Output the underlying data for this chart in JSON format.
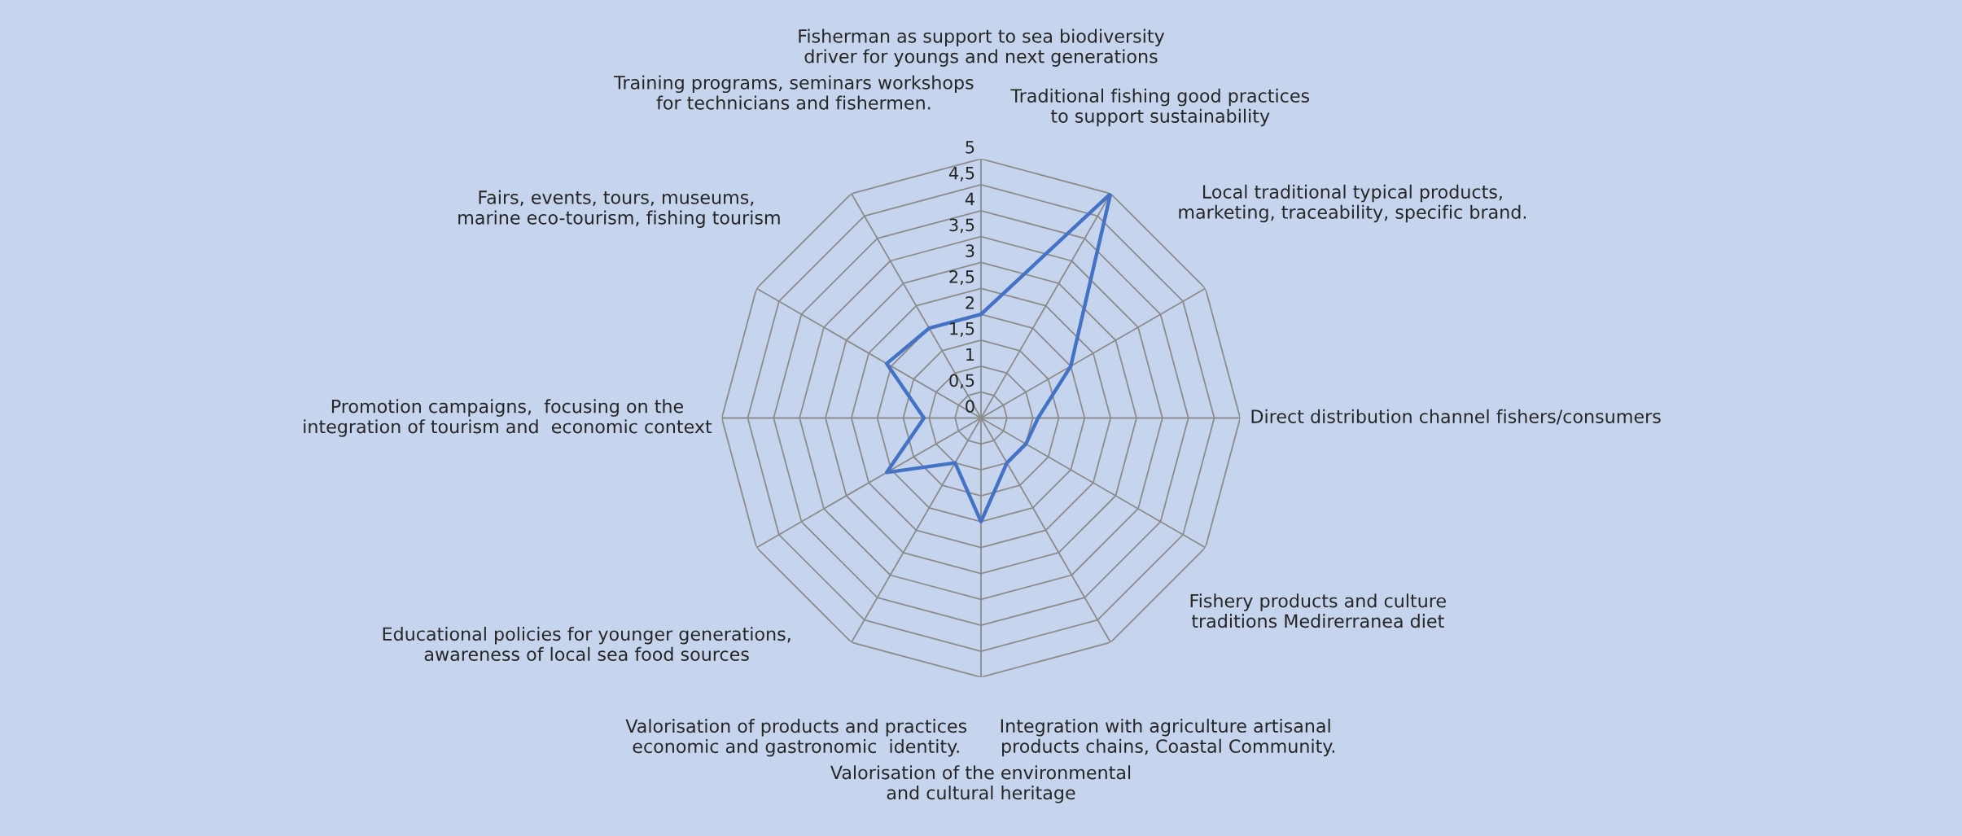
{
  "chart_data": {
    "type": "radar",
    "categories": [
      "Fisherman as support to sea biodiversity driver for youngs and next generations",
      "Traditional fishing good practices to support sustainability",
      "Local traditional typical products, marketing, traceability, specific brand.",
      "Direct distribution channel fishers/consumers",
      "Fishery products and culture traditions Medirerranea diet",
      "Integration with agriculture artisanal  products chains, Coastal Community.",
      "Valorisation of the environmental and cultural heritage",
      "Valorisation of products and practices economic and gastronomic  identity.",
      "Educational policies for younger generations, awareness of local sea food sources",
      "Promotion campaigns,  focusing on the integration of tourism and  economic context",
      "Fairs, events, tours, museums,  marine eco-tourism, fishing tourism",
      "Training programs, seminars workshops for technicians and fishermen."
    ],
    "series": [
      {
        "color": "#4472c4",
        "values": [
          2.0,
          5.0,
          2.0,
          1.1,
          1.0,
          1.0,
          2.0,
          1.0,
          2.1,
          1.1,
          2.1,
          2.0
        ]
      }
    ],
    "ylim": [
      0,
      5
    ],
    "yticks": [
      0,
      {
        "value": 0.5,
        "label": "0,5"
      },
      1,
      {
        "value": 1.5,
        "label": "1,5"
      },
      2,
      {
        "value": 2.5,
        "label": "2,5"
      },
      3,
      {
        "value": 3.5,
        "label": "3,5"
      },
      4,
      {
        "value": 4.5,
        "label": "4,5"
      },
      5
    ],
    "grid": true,
    "marker": "none",
    "line_style": "solid"
  }
}
